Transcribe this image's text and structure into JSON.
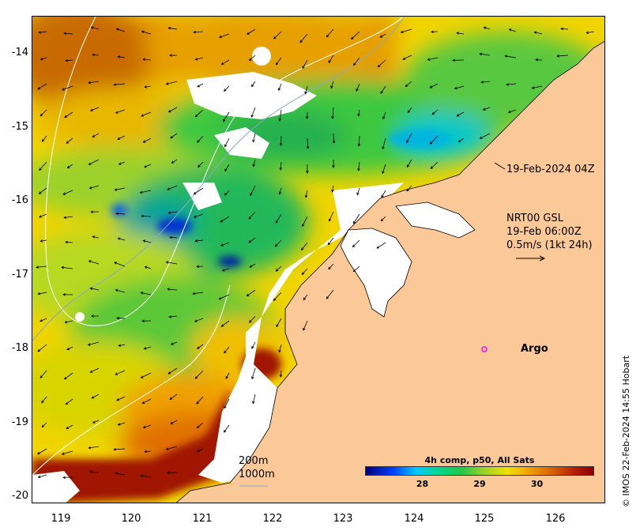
{
  "map": {
    "y_ticks": [
      "-14",
      "-15",
      "-16",
      "-17",
      "-18",
      "-19",
      "-20"
    ],
    "x_ticks": [
      "119",
      "120",
      "121",
      "122",
      "123",
      "124",
      "125",
      "126"
    ],
    "lon_range": [
      118.6,
      126.7
    ],
    "lat_range": [
      -20.15,
      -13.5
    ],
    "satellite_pass": "19-Feb-2024 04Z",
    "current_source": "NRT00 GSL",
    "current_time": "19-Feb 06:00Z",
    "current_scale": "0.5m/s (1kt 24h)",
    "float_label": "Argo",
    "float_position": {
      "lon": 125.3,
      "lat": -18.0
    },
    "isobath_1": "200m",
    "isobath_2": "1000m",
    "credit": "© IMOS 22-Feb-2024 14:55 Hobart",
    "land_color": "#fbc897",
    "argo_color": "#ff00ff"
  },
  "colorbar": {
    "title": "4h comp, p50, All Sats",
    "ticks": [
      "28",
      "29",
      "30"
    ],
    "tick_values": [
      28,
      29,
      30
    ],
    "range": [
      27.0,
      31.0
    ]
  }
}
